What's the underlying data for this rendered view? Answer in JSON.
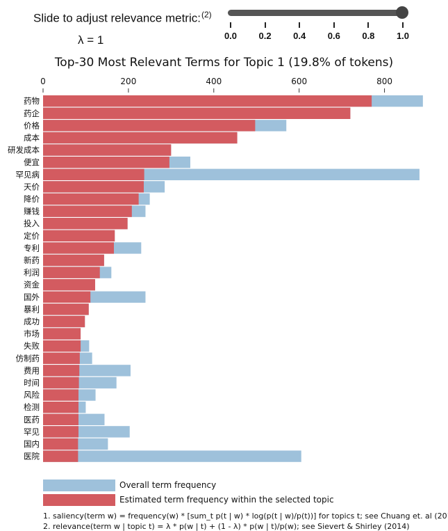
{
  "slider": {
    "title": "Slide to adjust relevance metric:",
    "title_footnote_ref": "(2)",
    "lambda_label": "λ = 1",
    "value": 1.0,
    "ticks": [
      "0.0",
      "0.2",
      "0.4",
      "0.6",
      "0.8",
      "1.0"
    ],
    "track_color": "#555555"
  },
  "chart_data": {
    "type": "bar",
    "orientation": "horizontal",
    "title": "Top-30 Most Relevant Terms for Topic 1 (19.8% of tokens)",
    "x_ticks": [
      "0",
      "200",
      "400",
      "600",
      "800"
    ],
    "xlim": [
      0,
      900
    ],
    "categories": [
      "药物",
      "药企",
      "价格",
      "成本",
      "研发成本",
      "便宜",
      "罕见病",
      "天价",
      "降价",
      "赚钱",
      "投入",
      "定价",
      "专利",
      "新药",
      "利润",
      "资金",
      "国外",
      "暴利",
      "成功",
      "市场",
      "失败",
      "仿制药",
      "费用",
      "时间",
      "风险",
      "检测",
      "医药",
      "罕见",
      "国内",
      "医院"
    ],
    "series": [
      {
        "name": "Overall term frequency",
        "color": "#9ec1db",
        "values": [
          890,
          720,
          570,
          455,
          300,
          345,
          882,
          285,
          250,
          240,
          198,
          168,
          230,
          143,
          160,
          122,
          240,
          107,
          98,
          88,
          108,
          115,
          205,
          172,
          123,
          100,
          144,
          203,
          152,
          605
        ]
      },
      {
        "name": "Estimated term frequency within the selected topic",
        "color": "#d35b60",
        "values": [
          770,
          720,
          497,
          455,
          300,
          296,
          237,
          236,
          224,
          208,
          198,
          168,
          166,
          143,
          133,
          122,
          111,
          107,
          98,
          88,
          88,
          86,
          85,
          84,
          83,
          83,
          83,
          83,
          82,
          82
        ]
      }
    ]
  },
  "legend": {
    "overall_label": "Overall term frequency",
    "topic_label": "Estimated term frequency within the selected topic",
    "overall_color": "#9ec1db",
    "topic_color": "#d35b60"
  },
  "footnotes": {
    "note1": "1. saliency(term w) = frequency(w) * [sum_t p(t | w) * log(p(t | w)/p(t))] for topics t; see Chuang et. al (2012)",
    "note2": "2. relevance(term w | topic t) = λ * p(w | t) + (1 - λ) * p(w | t)/p(w); see Sievert & Shirley (2014)"
  }
}
